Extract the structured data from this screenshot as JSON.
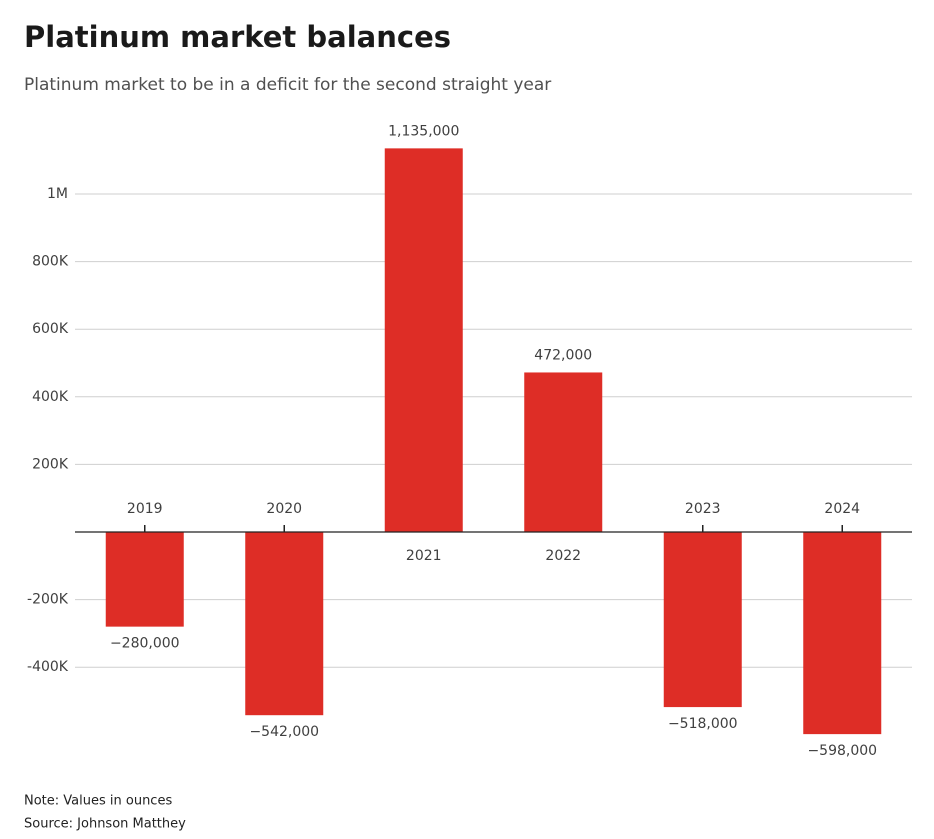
{
  "chart_data": {
    "type": "bar",
    "title": "Platinum market balances",
    "subtitle": "Platinum market to be in a deficit for the second straight year",
    "categories": [
      "2019",
      "2020",
      "2021",
      "2022",
      "2023",
      "2024"
    ],
    "values": [
      -280000,
      -542000,
      1135000,
      472000,
      -518000,
      -598000
    ],
    "value_labels": [
      "−280,000",
      "−542,000",
      "1,135,000",
      "472,000",
      "−518,000",
      "−598,000"
    ],
    "color": "#de2d26",
    "ylim": [
      -600000,
      1200000
    ],
    "yticks": [
      {
        "value": -400000,
        "label": "-400K"
      },
      {
        "value": -200000,
        "label": "-200K"
      },
      {
        "value": 200000,
        "label": "200K"
      },
      {
        "value": 400000,
        "label": "400K"
      },
      {
        "value": 600000,
        "label": "600K"
      },
      {
        "value": 800000,
        "label": "800K"
      },
      {
        "value": 1000000,
        "label": "1M"
      }
    ],
    "grid": true,
    "note": "Note: Values in ounces",
    "source": "Source: Johnson Matthey"
  }
}
